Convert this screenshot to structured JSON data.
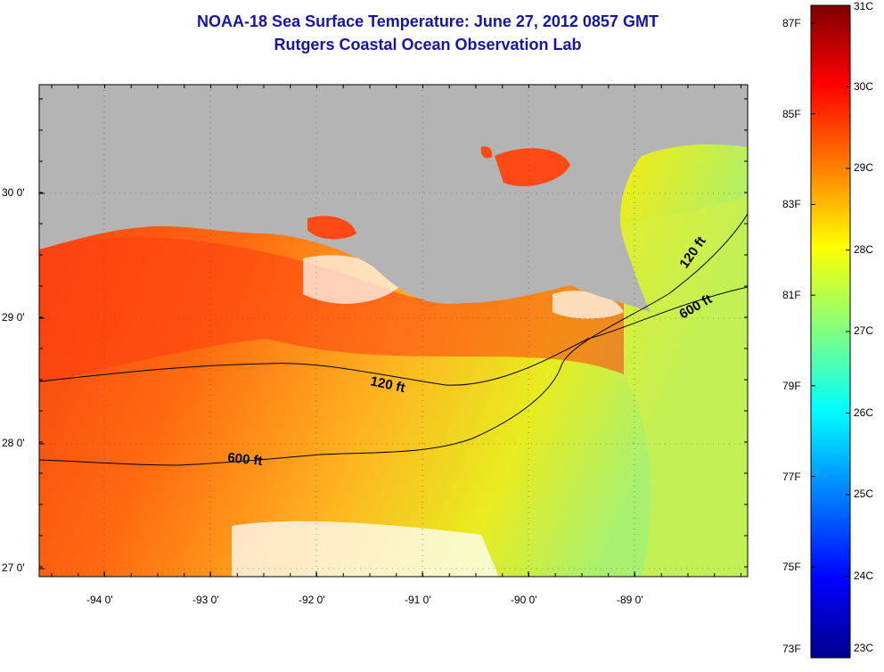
{
  "header": {
    "title": "NOAA-18 Sea Surface Temperature:  June 27, 2012 0857 GMT",
    "subtitle": "Rutgers Coastal Ocean Observation Lab"
  },
  "map": {
    "lon_ticks": [
      "-94 0'",
      "-93 0'",
      "-92 0'",
      "-91 0'",
      "-90 0'",
      "-89 0'"
    ],
    "lat_ticks": [
      "30 0'",
      "29 0'",
      "28 0'",
      "27 0'"
    ],
    "contour_labels": [
      "120 ft",
      "600 ft",
      "120 ft",
      "600 ft"
    ],
    "land_color": "#b4b4b4"
  },
  "colorbar": {
    "fahrenheit": [
      "87F",
      "85F",
      "83F",
      "81F",
      "79F",
      "77F",
      "75F",
      "73F"
    ],
    "celsius": [
      "31C",
      "30C",
      "29C",
      "28C",
      "27C",
      "26C",
      "25C",
      "24C",
      "23C"
    ],
    "colors": [
      "#7f0000",
      "#ff0000",
      "#ff8000",
      "#ffff00",
      "#80ff80",
      "#00ffff",
      "#0080ff",
      "#0000ff",
      "#00008f"
    ]
  }
}
